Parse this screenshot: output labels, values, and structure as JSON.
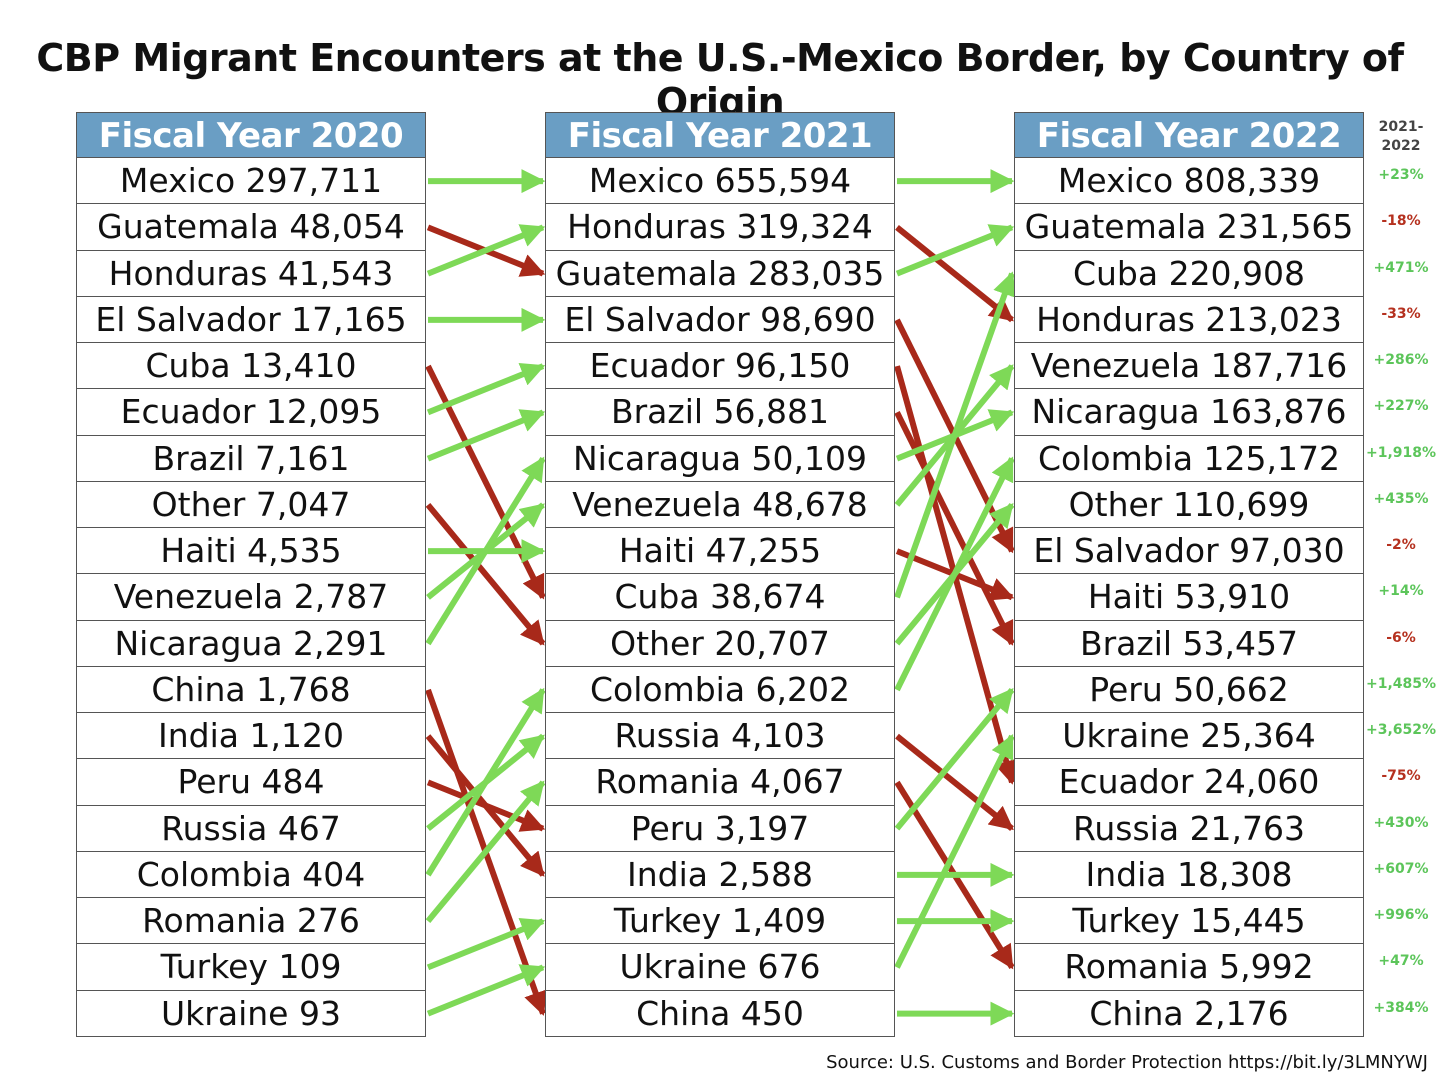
{
  "title": "CBP Migrant Encounters at the U.S.-Mexico Border, by Country of Origin",
  "source": "Source: U.S. Customs and Border Protection https://bit.ly/3LMNYWJ",
  "change_header": [
    "2021-",
    "2022"
  ],
  "colors": {
    "header": "#6a9ec4",
    "up": "#7ed957",
    "down": "#a8291a"
  },
  "chart_data": {
    "type": "table",
    "years": [
      {
        "header": "Fiscal Year 2020",
        "rows": [
          {
            "country": "Mexico",
            "count": "297,711"
          },
          {
            "country": "Guatemala",
            "count": "48,054"
          },
          {
            "country": "Honduras",
            "count": "41,543"
          },
          {
            "country": "El Salvador",
            "count": "17,165"
          },
          {
            "country": "Cuba",
            "count": "13,410"
          },
          {
            "country": "Ecuador",
            "count": "12,095"
          },
          {
            "country": "Brazil",
            "count": "7,161"
          },
          {
            "country": "Other",
            "count": "7,047"
          },
          {
            "country": "Haiti",
            "count": "4,535"
          },
          {
            "country": "Venezuela",
            "count": "2,787"
          },
          {
            "country": "Nicaragua",
            "count": "2,291"
          },
          {
            "country": "China",
            "count": "1,768"
          },
          {
            "country": "India",
            "count": "1,120"
          },
          {
            "country": "Peru",
            "count": "484"
          },
          {
            "country": "Russia",
            "count": "467"
          },
          {
            "country": "Colombia",
            "count": "404"
          },
          {
            "country": "Romania",
            "count": "276"
          },
          {
            "country": "Turkey",
            "count": "109"
          },
          {
            "country": "Ukraine",
            "count": "93"
          }
        ]
      },
      {
        "header": "Fiscal Year 2021",
        "rows": [
          {
            "country": "Mexico",
            "count": "655,594"
          },
          {
            "country": "Honduras",
            "count": "319,324"
          },
          {
            "country": "Guatemala",
            "count": "283,035"
          },
          {
            "country": "El Salvador",
            "count": "98,690"
          },
          {
            "country": "Ecuador",
            "count": "96,150"
          },
          {
            "country": "Brazil",
            "count": "56,881"
          },
          {
            "country": "Nicaragua",
            "count": "50,109"
          },
          {
            "country": "Venezuela",
            "count": "48,678"
          },
          {
            "country": "Haiti",
            "count": "47,255"
          },
          {
            "country": "Cuba",
            "count": "38,674"
          },
          {
            "country": "Other",
            "count": "20,707"
          },
          {
            "country": "Colombia",
            "count": "6,202"
          },
          {
            "country": "Russia",
            "count": "4,103"
          },
          {
            "country": "Romania",
            "count": "4,067"
          },
          {
            "country": "Peru",
            "count": "3,197"
          },
          {
            "country": "India",
            "count": "2,588"
          },
          {
            "country": "Turkey",
            "count": "1,409"
          },
          {
            "country": "Ukraine",
            "count": "676"
          },
          {
            "country": "China",
            "count": "450"
          }
        ]
      },
      {
        "header": "Fiscal Year 2022",
        "rows": [
          {
            "country": "Mexico",
            "count": "808,339",
            "change": "+23%"
          },
          {
            "country": "Guatemala",
            "count": "231,565",
            "change": "-18%"
          },
          {
            "country": "Cuba",
            "count": "220,908",
            "change": "+471%"
          },
          {
            "country": "Honduras",
            "count": "213,023",
            "change": "-33%"
          },
          {
            "country": "Venezuela",
            "count": "187,716",
            "change": "+286%"
          },
          {
            "country": "Nicaragua",
            "count": "163,876",
            "change": "+227%"
          },
          {
            "country": "Colombia",
            "count": "125,172",
            "change": "+1,918%"
          },
          {
            "country": "Other",
            "count": "110,699",
            "change": "+435%"
          },
          {
            "country": "El Salvador",
            "count": "97,030",
            "change": "-2%"
          },
          {
            "country": "Haiti",
            "count": "53,910",
            "change": "+14%"
          },
          {
            "country": "Brazil",
            "count": "53,457",
            "change": "-6%"
          },
          {
            "country": "Peru",
            "count": "50,662",
            "change": "+1,485%"
          },
          {
            "country": "Ukraine",
            "count": "25,364",
            "change": "+3,652%"
          },
          {
            "country": "Ecuador",
            "count": "24,060",
            "change": "-75%"
          },
          {
            "country": "Russia",
            "count": "21,763",
            "change": "+430%"
          },
          {
            "country": "India",
            "count": "18,308",
            "change": "+607%"
          },
          {
            "country": "Turkey",
            "count": "15,445",
            "change": "+996%"
          },
          {
            "country": "Romania",
            "count": "5,992",
            "change": "+47%"
          },
          {
            "country": "China",
            "count": "2,176",
            "change": "+384%"
          }
        ]
      }
    ]
  }
}
